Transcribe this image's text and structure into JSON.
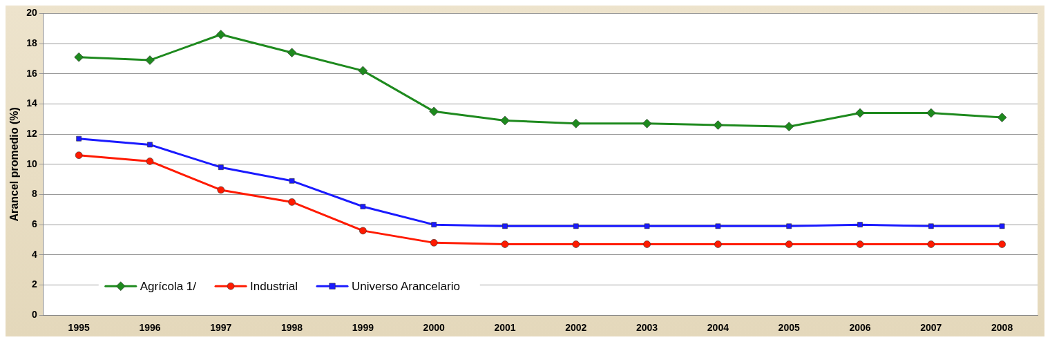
{
  "chart_data": {
    "type": "line",
    "ylabel": "Arancel promedio (%)",
    "categories": [
      "1995",
      "1996",
      "1997",
      "1998",
      "1999",
      "2000",
      "2001",
      "2002",
      "2003",
      "2004",
      "2005",
      "2006",
      "2007",
      "2008"
    ],
    "series": [
      {
        "name": "Agrícola 1/",
        "color": "#1e8a1e",
        "marker": "diamond",
        "values": [
          17.1,
          16.9,
          18.6,
          17.4,
          16.2,
          13.5,
          12.9,
          12.7,
          12.7,
          12.6,
          12.5,
          13.4,
          13.4,
          13.1
        ]
      },
      {
        "name": "Industrial",
        "color": "#ff1a00",
        "marker": "circle",
        "values": [
          10.6,
          10.2,
          8.3,
          7.5,
          5.6,
          4.8,
          4.7,
          4.7,
          4.7,
          4.7,
          4.7,
          4.7,
          4.7,
          4.7
        ]
      },
      {
        "name": "Universo Arancelario",
        "color": "#1a1aff",
        "marker": "square",
        "values": [
          11.7,
          11.3,
          9.8,
          8.9,
          7.2,
          6.0,
          5.9,
          5.9,
          5.9,
          5.9,
          5.9,
          6.0,
          5.9,
          5.9
        ]
      }
    ],
    "ylim": [
      0,
      20
    ],
    "yticks": [
      0,
      2,
      4,
      6,
      8,
      10,
      12,
      14,
      16,
      18,
      20
    ],
    "grid": "y",
    "legend": "bottom left"
  }
}
